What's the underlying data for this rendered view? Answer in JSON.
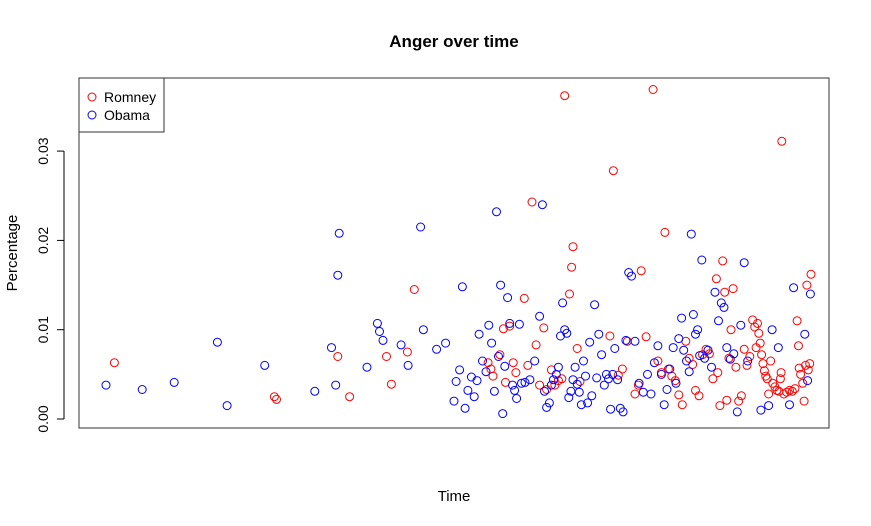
{
  "chart_data": {
    "type": "scatter",
    "title": "Anger over time",
    "xlabel": "Time",
    "ylabel": "Percentage",
    "x_ticks_shown": false,
    "ylim": [
      0,
      0.037
    ],
    "y_ticks": [
      {
        "value": 0.0,
        "label": "0.00"
      },
      {
        "value": 0.01,
        "label": "0.01"
      },
      {
        "value": 0.02,
        "label": "0.02"
      },
      {
        "value": 0.03,
        "label": "0.03"
      }
    ],
    "grid": false,
    "legend": {
      "position": "top-left",
      "entries": [
        {
          "label": "Romney",
          "color": "#ff0000"
        },
        {
          "label": "Obama",
          "color": "#0000ff"
        }
      ]
    },
    "series": [
      {
        "name": "Romney",
        "color": "#ff0000",
        "points": [
          [
            0.012,
            0.0063
          ],
          [
            0.242,
            0.0025
          ],
          [
            0.245,
            0.0022
          ],
          [
            0.333,
            0.007
          ],
          [
            0.35,
            0.0025
          ],
          [
            0.403,
            0.007
          ],
          [
            0.41,
            0.0039
          ],
          [
            0.433,
            0.0075
          ],
          [
            0.443,
            0.0145
          ],
          [
            0.549,
            0.0063
          ],
          [
            0.553,
            0.0056
          ],
          [
            0.556,
            0.0048
          ],
          [
            0.566,
            0.0072
          ],
          [
            0.571,
            0.0101
          ],
          [
            0.574,
            0.0041
          ],
          [
            0.58,
            0.0104
          ],
          [
            0.585,
            0.0063
          ],
          [
            0.589,
            0.0052
          ],
          [
            0.601,
            0.0135
          ],
          [
            0.606,
            0.006
          ],
          [
            0.612,
            0.0243
          ],
          [
            0.618,
            0.0083
          ],
          [
            0.623,
            0.0038
          ],
          [
            0.629,
            0.0102
          ],
          [
            0.633,
            0.0033
          ],
          [
            0.64,
            0.0055
          ],
          [
            0.645,
            0.0038
          ],
          [
            0.65,
            0.0043
          ],
          [
            0.655,
            0.0045
          ],
          [
            0.659,
            0.0362
          ],
          [
            0.666,
            0.014
          ],
          [
            0.669,
            0.017
          ],
          [
            0.671,
            0.0193
          ],
          [
            0.677,
            0.0079
          ],
          [
            0.681,
            0.0042
          ],
          [
            0.724,
            0.0093
          ],
          [
            0.729,
            0.0278
          ],
          [
            0.736,
            0.0049
          ],
          [
            0.742,
            0.0056
          ],
          [
            0.749,
            0.0087
          ],
          [
            0.76,
            0.0028
          ],
          [
            0.765,
            0.0038
          ],
          [
            0.769,
            0.0166
          ],
          [
            0.776,
            0.0092
          ],
          [
            0.786,
            0.0369
          ],
          [
            0.793,
            0.0065
          ],
          [
            0.798,
            0.0052
          ],
          [
            0.803,
            0.0209
          ],
          [
            0.808,
            0.0056
          ],
          [
            0.813,
            0.0048
          ],
          [
            0.818,
            0.0043
          ],
          [
            0.823,
            0.0027
          ],
          [
            0.828,
            0.0016
          ],
          [
            0.833,
            0.0087
          ],
          [
            0.838,
            0.0068
          ],
          [
            0.843,
            0.0061
          ],
          [
            0.847,
            0.0032
          ],
          [
            0.852,
            0.0026
          ],
          [
            0.857,
            0.0072
          ],
          [
            0.862,
            0.0078
          ],
          [
            0.867,
            0.0073
          ],
          [
            0.872,
            0.0045
          ],
          [
            0.877,
            0.0157
          ],
          [
            0.879,
            0.0052
          ],
          [
            0.882,
            0.0015
          ],
          [
            0.886,
            0.0177
          ],
          [
            0.889,
            0.0142
          ],
          [
            0.892,
            0.0021
          ],
          [
            0.895,
            0.0068
          ],
          [
            0.898,
            0.01
          ],
          [
            0.901,
            0.0146
          ],
          [
            0.905,
            0.0058
          ],
          [
            0.909,
            0.002
          ],
          [
            0.913,
            0.0026
          ],
          [
            0.917,
            0.0078
          ],
          [
            0.921,
            0.006
          ],
          [
            0.925,
            0.007
          ],
          [
            0.929,
            0.0111
          ],
          [
            0.932,
            0.0103
          ],
          [
            0.934,
            0.008
          ],
          [
            0.936,
            0.0107
          ],
          [
            0.938,
            0.0096
          ],
          [
            0.94,
            0.0085
          ],
          [
            0.942,
            0.0072
          ],
          [
            0.944,
            0.0062
          ],
          [
            0.946,
            0.0054
          ],
          [
            0.948,
            0.0048
          ],
          [
            0.95,
            0.0045
          ],
          [
            0.952,
            0.0028
          ],
          [
            0.955,
            0.0065
          ],
          [
            0.958,
            0.004
          ],
          [
            0.961,
            0.0036
          ],
          [
            0.964,
            0.0032
          ],
          [
            0.967,
            0.0031
          ],
          [
            0.969,
            0.0045
          ],
          [
            0.97,
            0.0052
          ],
          [
            0.971,
            0.0311
          ],
          [
            0.974,
            0.0028
          ],
          [
            0.978,
            0.003
          ],
          [
            0.982,
            0.0032
          ],
          [
            0.986,
            0.0031
          ],
          [
            0.99,
            0.0034
          ],
          [
            0.993,
            0.011
          ],
          [
            0.995,
            0.0082
          ],
          [
            0.998,
            0.005
          ],
          [
            1.001,
            0.004
          ],
          [
            1.003,
            0.002
          ],
          [
            1.005,
            0.006
          ],
          [
            1.007,
            0.015
          ],
          [
            1.009,
            0.0055
          ],
          [
            1.011,
            0.0062
          ],
          [
            1.013,
            0.0162
          ],
          [
            0.996,
            0.0057
          ]
        ]
      },
      {
        "name": "Obama",
        "color": "#0000ff",
        "points": [
          [
            0.0,
            0.0038
          ],
          [
            0.052,
            0.0033
          ],
          [
            0.098,
            0.0041
          ],
          [
            0.16,
            0.0086
          ],
          [
            0.174,
            0.0015
          ],
          [
            0.228,
            0.006
          ],
          [
            0.3,
            0.0031
          ],
          [
            0.324,
            0.008
          ],
          [
            0.33,
            0.0038
          ],
          [
            0.333,
            0.0161
          ],
          [
            0.335,
            0.0208
          ],
          [
            0.375,
            0.0058
          ],
          [
            0.39,
            0.0107
          ],
          [
            0.393,
            0.0098
          ],
          [
            0.398,
            0.0088
          ],
          [
            0.424,
            0.0083
          ],
          [
            0.434,
            0.006
          ],
          [
            0.452,
            0.0215
          ],
          [
            0.456,
            0.01
          ],
          [
            0.475,
            0.0078
          ],
          [
            0.488,
            0.0085
          ],
          [
            0.5,
            0.002
          ],
          [
            0.503,
            0.0042
          ],
          [
            0.508,
            0.0055
          ],
          [
            0.512,
            0.0148
          ],
          [
            0.516,
            0.0012
          ],
          [
            0.52,
            0.0032
          ],
          [
            0.525,
            0.0047
          ],
          [
            0.529,
            0.0025
          ],
          [
            0.533,
            0.0043
          ],
          [
            0.536,
            0.0095
          ],
          [
            0.541,
            0.0065
          ],
          [
            0.546,
            0.0053
          ],
          [
            0.55,
            0.0105
          ],
          [
            0.554,
            0.0085
          ],
          [
            0.558,
            0.0031
          ],
          [
            0.561,
            0.0232
          ],
          [
            0.564,
            0.007
          ],
          [
            0.567,
            0.015
          ],
          [
            0.57,
            0.0006
          ],
          [
            0.573,
            0.0059
          ],
          [
            0.577,
            0.0136
          ],
          [
            0.58,
            0.0107
          ],
          [
            0.584,
            0.0038
          ],
          [
            0.587,
            0.0032
          ],
          [
            0.59,
            0.0023
          ],
          [
            0.594,
            0.0106
          ],
          [
            0.597,
            0.004
          ],
          [
            0.602,
            0.0041
          ],
          [
            0.609,
            0.0044
          ],
          [
            0.616,
            0.0065
          ],
          [
            0.623,
            0.0115
          ],
          [
            0.627,
            0.024
          ],
          [
            0.63,
            0.0031
          ],
          [
            0.633,
            0.0013
          ],
          [
            0.637,
            0.0018
          ],
          [
            0.64,
            0.0038
          ],
          [
            0.643,
            0.0044
          ],
          [
            0.647,
            0.005
          ],
          [
            0.65,
            0.0058
          ],
          [
            0.653,
            0.0093
          ],
          [
            0.656,
            0.013
          ],
          [
            0.659,
            0.01
          ],
          [
            0.662,
            0.0096
          ],
          [
            0.665,
            0.0024
          ],
          [
            0.668,
            0.0031
          ],
          [
            0.671,
            0.0044
          ],
          [
            0.674,
            0.0058
          ],
          [
            0.677,
            0.0039
          ],
          [
            0.68,
            0.003
          ],
          [
            0.683,
            0.0016
          ],
          [
            0.686,
            0.0065
          ],
          [
            0.689,
            0.0048
          ],
          [
            0.692,
            0.0018
          ],
          [
            0.695,
            0.0086
          ],
          [
            0.698,
            0.0026
          ],
          [
            0.702,
            0.0128
          ],
          [
            0.705,
            0.0046
          ],
          [
            0.708,
            0.0095
          ],
          [
            0.712,
            0.0072
          ],
          [
            0.716,
            0.0038
          ],
          [
            0.719,
            0.005
          ],
          [
            0.722,
            0.0045
          ],
          [
            0.725,
            0.0011
          ],
          [
            0.728,
            0.005
          ],
          [
            0.731,
            0.0079
          ],
          [
            0.735,
            0.0044
          ],
          [
            0.739,
            0.0012
          ],
          [
            0.743,
            0.0008
          ],
          [
            0.747,
            0.0088
          ],
          [
            0.751,
            0.0164
          ],
          [
            0.755,
            0.016
          ],
          [
            0.76,
            0.0087
          ],
          [
            0.766,
            0.004
          ],
          [
            0.772,
            0.003
          ],
          [
            0.778,
            0.005
          ],
          [
            0.783,
            0.0028
          ],
          [
            0.788,
            0.0063
          ],
          [
            0.793,
            0.0082
          ],
          [
            0.798,
            0.005
          ],
          [
            0.802,
            0.0016
          ],
          [
            0.806,
            0.0033
          ],
          [
            0.81,
            0.0056
          ],
          [
            0.815,
            0.008
          ],
          [
            0.819,
            0.004
          ],
          [
            0.823,
            0.009
          ],
          [
            0.827,
            0.0113
          ],
          [
            0.83,
            0.0077
          ],
          [
            0.834,
            0.0065
          ],
          [
            0.838,
            0.0053
          ],
          [
            0.841,
            0.0207
          ],
          [
            0.844,
            0.0117
          ],
          [
            0.847,
            0.0095
          ],
          [
            0.85,
            0.01
          ],
          [
            0.853,
            0.0071
          ],
          [
            0.856,
            0.0178
          ],
          [
            0.86,
            0.0068
          ],
          [
            0.865,
            0.0077
          ],
          [
            0.87,
            0.0058
          ],
          [
            0.875,
            0.0142
          ],
          [
            0.88,
            0.011
          ],
          [
            0.884,
            0.013
          ],
          [
            0.888,
            0.0125
          ],
          [
            0.892,
            0.008
          ],
          [
            0.897,
            0.0067
          ],
          [
            0.902,
            0.0073
          ],
          [
            0.907,
            0.0008
          ],
          [
            0.912,
            0.0105
          ],
          [
            0.917,
            0.0175
          ],
          [
            0.922,
            0.0065
          ],
          [
            0.941,
            0.001
          ],
          [
            0.952,
            0.0015
          ],
          [
            0.957,
            0.01
          ],
          [
            0.966,
            0.008
          ],
          [
            0.982,
            0.0016
          ],
          [
            0.988,
            0.0147
          ],
          [
            1.004,
            0.0095
          ],
          [
            1.008,
            0.0043
          ],
          [
            1.012,
            0.014
          ]
        ]
      }
    ]
  }
}
